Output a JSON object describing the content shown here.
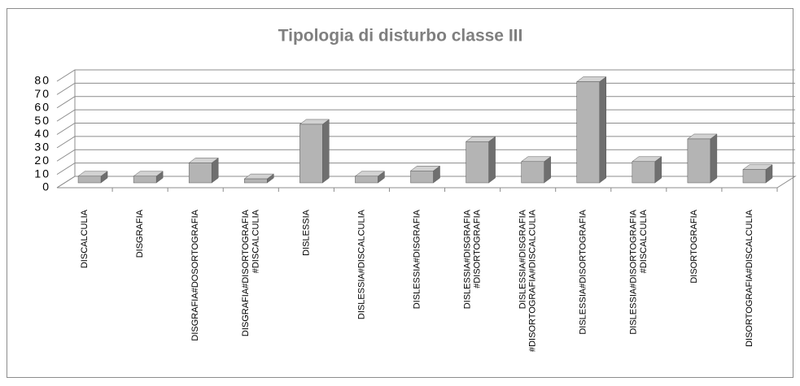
{
  "chart_data": {
    "type": "bar3d",
    "title": "Tipologia di disturbo classe III",
    "categories": [
      "DISCALCULIA",
      "DISGRAFIA",
      "DISGRAFIA#DOSORTOGRAFIA",
      "DISGRAFIA#DISORTOGRAFIA\n#DISCALCULIA",
      "DISLESSIA",
      "DISLESSIA#DISCALCULIA",
      "DISLESSIA#DISGRAFIA",
      "DISLESSIA#DISGRAFIA\n#DISORTOGRAFIA",
      "DISLESSIA#DISGRAFIA\n#DISORTOGRAFIA#DISCALCULIA",
      "DISLESSIA#DISORTOGRAFIA",
      "DISLESSIA#DISORTOGRAFIA\n#DISCALCULIA",
      "DISORTOGRAFIA",
      "DISORTOGRAFIA#DISCALCULIA"
    ],
    "values": [
      5,
      5,
      15,
      3,
      44,
      5,
      9,
      31,
      16,
      76,
      16,
      33,
      10
    ],
    "color": "#b4b4b4",
    "ylim": [
      0,
      80
    ],
    "yticks": [
      0,
      10,
      20,
      30,
      40,
      50,
      60,
      70,
      80
    ],
    "grid": true
  }
}
